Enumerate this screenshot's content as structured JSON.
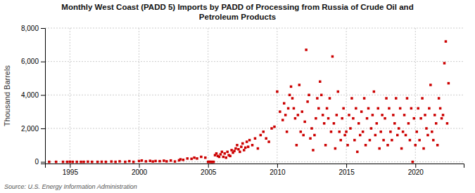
{
  "chart_data": {
    "type": "scatter",
    "title": "Monthly West Coast (PADD 5) Imports by PADD of Processing from Russia of Crude Oil and\nPetroleum Products",
    "ylabel": "Thousand Barrels",
    "annotations": [
      "Source: U.S. Energy Information Administration"
    ],
    "color": "#cc0000",
    "marker": "square",
    "grid": true,
    "xlim": [
      1993.2,
      2023.5
    ],
    "ylim": [
      -100,
      8000
    ],
    "xticks": [
      1995,
      2000,
      2005,
      2010,
      2015,
      2020
    ],
    "yticks": [
      0,
      {
        "value": 2000,
        "label": "2,000"
      },
      {
        "value": 4000,
        "label": "4,000"
      },
      {
        "value": 6000,
        "label": "6,000"
      },
      {
        "value": 8000,
        "label": "8,000"
      }
    ],
    "x": [
      1993.5,
      1994.0,
      1994.5,
      1994.8,
      1995.0,
      1995.2,
      1995.5,
      1995.8,
      1996.0,
      1996.3,
      1996.6,
      1997.0,
      1997.3,
      1997.6,
      1998.0,
      1998.3,
      1998.6,
      1999.0,
      1999.3,
      1999.6,
      2000.0,
      2000.2,
      2000.5,
      2000.8,
      2001.0,
      2001.2,
      2001.5,
      2001.8,
      2002.0,
      2002.3,
      2002.6,
      2002.9,
      2003.0,
      2003.2,
      2003.5,
      2003.8,
      2004.0,
      2004.2,
      2004.5,
      2004.8,
      2005.0,
      2005.1,
      2005.2,
      2005.3,
      2005.4,
      2005.5,
      2005.6,
      2005.7,
      2005.8,
      2005.9,
      2006.0,
      2006.1,
      2006.2,
      2006.3,
      2006.4,
      2006.5,
      2006.6,
      2006.7,
      2006.8,
      2006.9,
      2007.0,
      2007.1,
      2007.2,
      2007.3,
      2007.4,
      2007.5,
      2007.6,
      2007.7,
      2007.8,
      2007.9,
      2008.0,
      2008.2,
      2008.4,
      2008.6,
      2008.8,
      2009.0,
      2009.2,
      2009.4,
      2009.6,
      2009.8,
      2010.0,
      2010.2,
      2010.4,
      2010.5,
      2010.6,
      2010.7,
      2010.8,
      2010.9,
      2011.0,
      2011.1,
      2011.2,
      2011.3,
      2011.4,
      2011.5,
      2011.6,
      2011.7,
      2011.8,
      2011.9,
      2012.0,
      2012.1,
      2012.2,
      2012.3,
      2012.4,
      2012.5,
      2012.6,
      2012.7,
      2012.8,
      2012.9,
      2013.0,
      2013.1,
      2013.2,
      2013.3,
      2013.4,
      2013.5,
      2013.6,
      2013.7,
      2013.8,
      2013.9,
      2014.0,
      2014.1,
      2014.2,
      2014.3,
      2014.4,
      2014.5,
      2014.6,
      2014.7,
      2014.8,
      2014.9,
      2015.0,
      2015.1,
      2015.2,
      2015.3,
      2015.4,
      2015.5,
      2015.6,
      2015.7,
      2015.8,
      2015.9,
      2016.0,
      2016.1,
      2016.2,
      2016.3,
      2016.4,
      2016.5,
      2016.6,
      2016.7,
      2016.8,
      2016.9,
      2017.0,
      2017.1,
      2017.2,
      2017.3,
      2017.4,
      2017.5,
      2017.6,
      2017.7,
      2017.8,
      2017.9,
      2018.0,
      2018.1,
      2018.2,
      2018.3,
      2018.4,
      2018.5,
      2018.6,
      2018.7,
      2018.8,
      2018.9,
      2019.0,
      2019.1,
      2019.2,
      2019.3,
      2019.4,
      2019.5,
      2019.6,
      2019.7,
      2019.8,
      2019.9,
      2020.0,
      2020.1,
      2020.2,
      2020.3,
      2020.4,
      2020.5,
      2020.6,
      2020.7,
      2020.8,
      2020.9,
      2021.0,
      2021.1,
      2021.2,
      2021.3,
      2021.4,
      2021.5,
      2021.6,
      2021.7,
      2021.8,
      2021.9,
      2022.0,
      2022.1,
      2022.2,
      2022.3,
      2022.4
    ],
    "values": [
      0,
      0,
      0,
      0,
      5,
      0,
      0,
      0,
      0,
      10,
      0,
      0,
      5,
      0,
      20,
      0,
      30,
      0,
      40,
      0,
      50,
      80,
      30,
      60,
      20,
      50,
      40,
      70,
      30,
      80,
      20,
      90,
      150,
      120,
      200,
      180,
      250,
      200,
      300,
      250,
      0,
      5,
      0,
      0,
      0,
      400,
      500,
      350,
      300,
      450,
      600,
      300,
      500,
      250,
      600,
      400,
      350,
      700,
      550,
      650,
      800,
      1000,
      750,
      600,
      900,
      1100,
      700,
      850,
      1200,
      900,
      1300,
      1000,
      1400,
      800,
      1600,
      1800,
      1400,
      1200,
      2000,
      2100,
      4200,
      3000,
      2500,
      3500,
      2800,
      1800,
      3200,
      4000,
      4500,
      3800,
      3200,
      2600,
      1000,
      2800,
      4600,
      1800,
      3000,
      1600,
      2400,
      6700,
      3600,
      4000,
      1400,
      2000,
      700,
      1600,
      2600,
      3800,
      3200,
      4800,
      4000,
      2800,
      2300,
      1000,
      3200,
      2600,
      3800,
      1800,
      6300,
      2300,
      800,
      2800,
      4200,
      1800,
      1300,
      2600,
      3200,
      1600,
      1800,
      1000,
      2800,
      2000,
      3800,
      2600,
      1300,
      3200,
      600,
      2300,
      1600,
      3000,
      1800,
      3800,
      1000,
      2600,
      3200,
      1300,
      2000,
      2800,
      4200,
      1600,
      2300,
      3200,
      800,
      1800,
      2800,
      1300,
      2600,
      3800,
      1000,
      3200,
      1800,
      1300,
      2800,
      2300,
      3800,
      1600,
      2000,
      3200,
      800,
      1800,
      2800,
      1600,
      3800,
      2300,
      1300,
      3200,
      0,
      2600,
      1000,
      1800,
      3200,
      1300,
      2600,
      3800,
      800,
      2800,
      2000,
      1600,
      3200,
      4600,
      1800,
      1300,
      2800,
      2300,
      1000,
      3800,
      3200,
      2600,
      2800,
      5900,
      7200,
      2300,
      4700
    ]
  }
}
